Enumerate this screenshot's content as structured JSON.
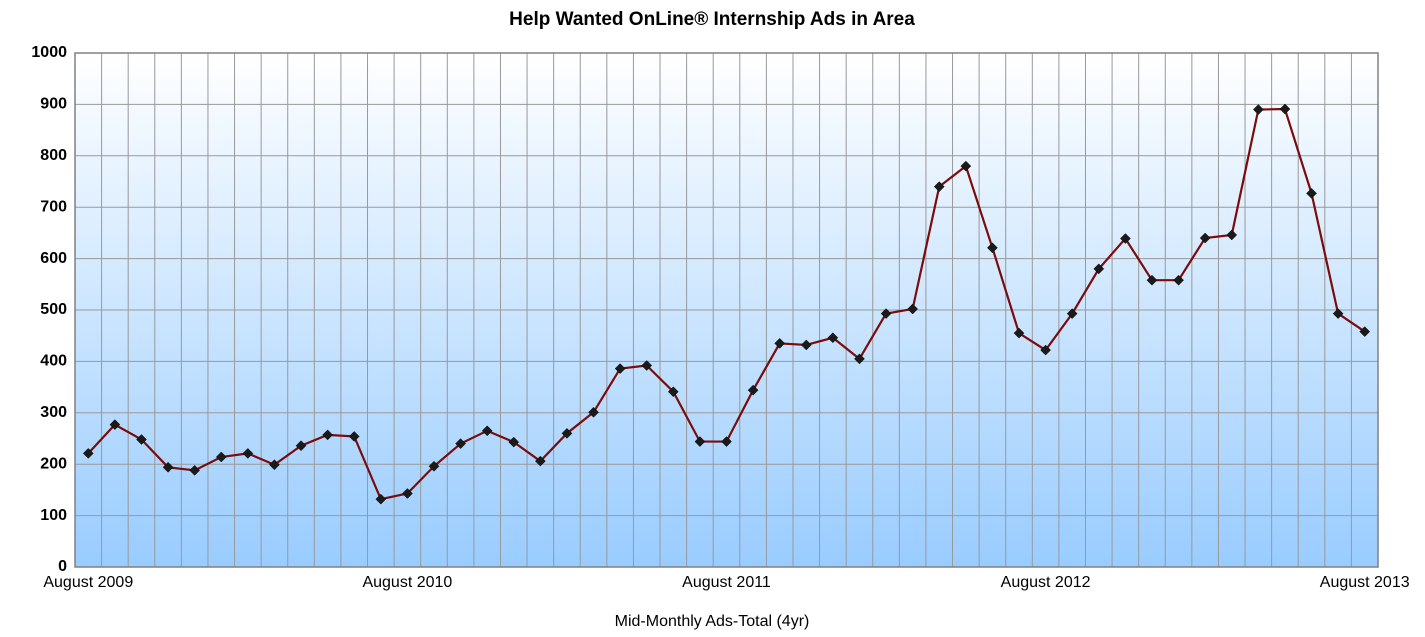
{
  "chart_data": {
    "type": "line",
    "title": "Help Wanted OnLine® Internship Ads in Area",
    "x_label": "Mid-Monthly Ads-Total (4yr)",
    "categories": [
      "August 2009",
      null,
      null,
      null,
      null,
      null,
      null,
      null,
      null,
      null,
      null,
      null,
      "August 2010",
      null,
      null,
      null,
      null,
      null,
      null,
      null,
      null,
      null,
      null,
      null,
      "August 2011",
      null,
      null,
      null,
      null,
      null,
      null,
      null,
      null,
      null,
      null,
      null,
      "August 2012",
      null,
      null,
      null,
      null,
      null,
      null,
      null,
      null,
      null,
      null,
      null,
      "August 2013"
    ],
    "series": [
      {
        "name": "Ads",
        "color": "#7b0c0c",
        "marker_color": "#1a1a1a",
        "values": [
          221,
          277,
          248,
          194,
          188,
          214,
          221,
          199,
          236,
          257,
          254,
          132,
          143,
          196,
          240,
          265,
          243,
          206,
          260,
          301,
          386,
          392,
          341,
          244,
          244,
          344,
          435,
          432,
          446,
          405,
          493,
          502,
          740,
          780,
          621,
          455,
          422,
          493,
          580,
          639,
          558,
          558,
          640,
          646,
          890,
          891,
          727,
          493,
          458
        ]
      }
    ],
    "ylim": [
      0,
      1000
    ],
    "yticks": [
      0,
      100,
      200,
      300,
      400,
      500,
      600,
      700,
      800,
      900,
      1000
    ],
    "grid": true
  }
}
